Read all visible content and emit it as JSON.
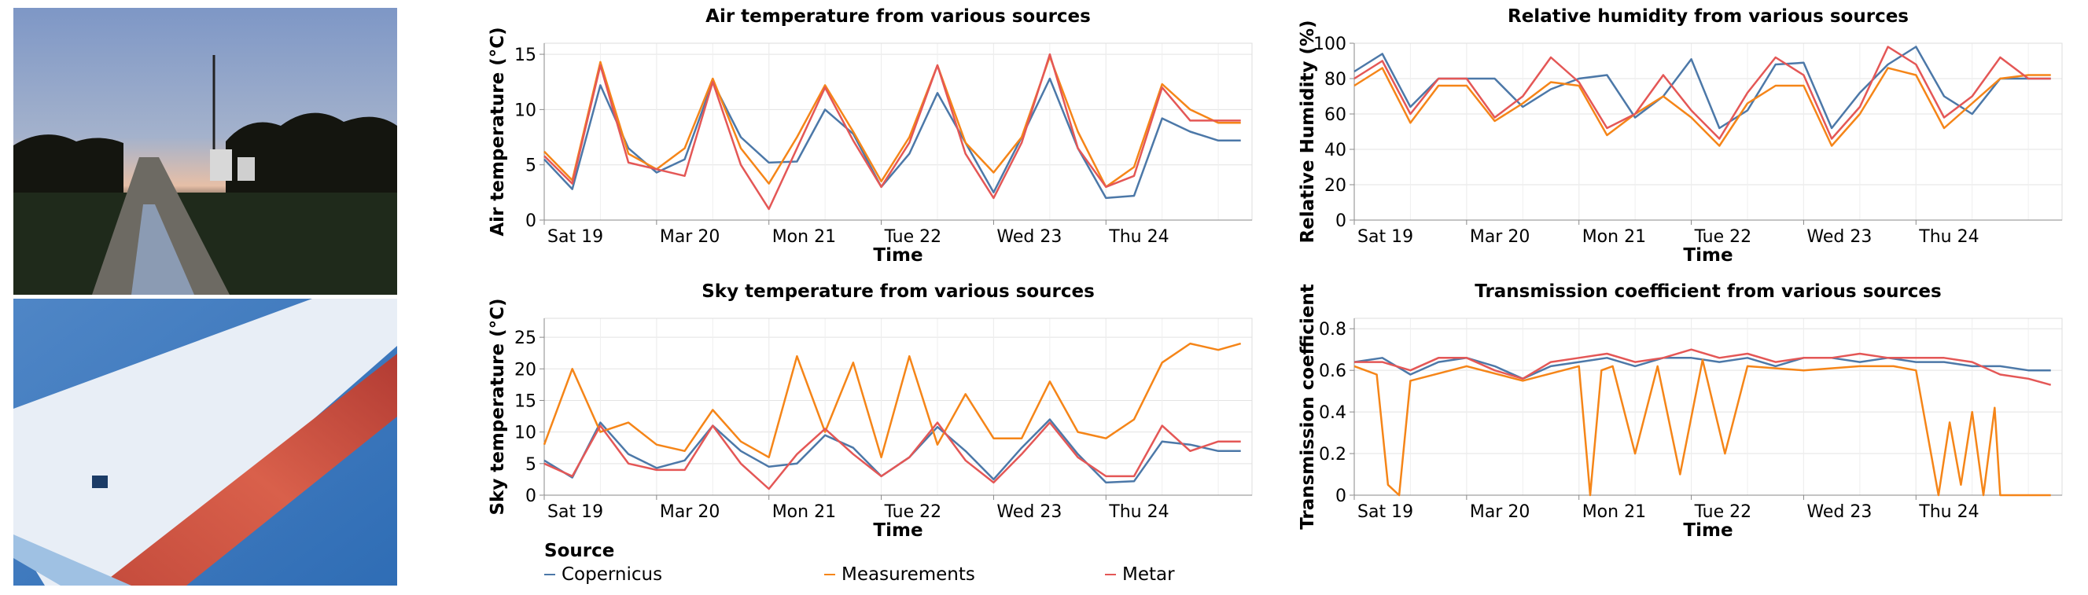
{
  "photos": {
    "top": {
      "title": "Test site photograph at dusk"
    },
    "bottom": {
      "title": "Thermal infrared image of the surface"
    }
  },
  "series_colors": {
    "Copernicus": "#4c78a8",
    "Measurements": "#f58518",
    "Metar": "#e45756"
  },
  "legend": {
    "title": "Source",
    "items": [
      {
        "name": "Copernicus",
        "color": "#4c78a8"
      },
      {
        "name": "Measurements",
        "color": "#f58518"
      },
      {
        "name": "Metar",
        "color": "#e45756"
      }
    ]
  },
  "chart_data": [
    {
      "id": "air",
      "type": "line",
      "title": "Air temperature from various sources",
      "xlabel": "Time",
      "ylabel": "Air temperature (°C)",
      "xlim": [
        0,
        6.3
      ],
      "ylim": [
        0,
        16
      ],
      "yticks": [
        0,
        5,
        10,
        15
      ],
      "xticks": [
        {
          "x": 0,
          "label": "Sat 19"
        },
        {
          "x": 1,
          "label": "Mar 20"
        },
        {
          "x": 2,
          "label": "Mon 21"
        },
        {
          "x": 3,
          "label": "Tue 22"
        },
        {
          "x": 4,
          "label": "Wed 23"
        },
        {
          "x": 5,
          "label": "Thu 24"
        }
      ],
      "series": [
        {
          "name": "Copernicus",
          "x": [
            0,
            0.25,
            0.5,
            0.75,
            1,
            1.25,
            1.5,
            1.75,
            2,
            2.25,
            2.5,
            2.75,
            3,
            3.25,
            3.5,
            3.75,
            4,
            4.25,
            4.5,
            4.75,
            5,
            5.25,
            5.5,
            5.75,
            6,
            6.2
          ],
          "values": [
            5.5,
            2.8,
            12.2,
            6.5,
            4.3,
            5.5,
            12.5,
            7.5,
            5.2,
            5.3,
            10.0,
            7.8,
            3.0,
            6.0,
            11.5,
            7.0,
            2.5,
            7.5,
            12.8,
            6.5,
            2.0,
            2.2,
            9.2,
            8.0,
            7.2,
            7.2
          ]
        },
        {
          "name": "Measurements",
          "x": [
            0,
            0.25,
            0.5,
            0.75,
            1,
            1.25,
            1.5,
            1.75,
            2,
            2.25,
            2.5,
            2.75,
            3,
            3.25,
            3.5,
            3.75,
            4,
            4.25,
            4.5,
            4.75,
            5,
            5.25,
            5.5,
            5.75,
            6,
            6.2
          ],
          "values": [
            6.2,
            3.6,
            14.3,
            6.0,
            4.6,
            6.5,
            12.8,
            6.5,
            3.3,
            7.5,
            12.2,
            8.0,
            3.5,
            7.5,
            14.0,
            7.0,
            4.3,
            7.5,
            14.8,
            8.0,
            3.0,
            4.8,
            12.3,
            10.0,
            8.8,
            8.8
          ]
        },
        {
          "name": "Metar",
          "x": [
            0,
            0.25,
            0.5,
            0.75,
            1,
            1.25,
            1.5,
            1.75,
            2,
            2.25,
            2.5,
            2.75,
            3,
            3.25,
            3.5,
            3.75,
            4,
            4.25,
            4.5,
            4.75,
            5,
            5.25,
            5.5,
            5.75,
            6,
            6.2
          ],
          "values": [
            5.8,
            3.3,
            14.0,
            5.2,
            4.6,
            4.0,
            12.5,
            5.0,
            1.0,
            6.5,
            12.0,
            7.2,
            3.0,
            7.0,
            14.0,
            6.0,
            2.0,
            7.0,
            15.0,
            6.5,
            3.0,
            4.0,
            12.0,
            9.0,
            9.0,
            9.0
          ]
        }
      ]
    },
    {
      "id": "humidity",
      "type": "line",
      "title": "Relative humidity from various sources",
      "xlabel": "Time",
      "ylabel": "Relative Humidity (%)",
      "xlim": [
        0,
        6.3
      ],
      "ylim": [
        0,
        100
      ],
      "yticks": [
        0,
        20,
        40,
        60,
        80,
        100
      ],
      "xticks": [
        {
          "x": 0,
          "label": "Sat 19"
        },
        {
          "x": 1,
          "label": "Mar 20"
        },
        {
          "x": 2,
          "label": "Mon 21"
        },
        {
          "x": 3,
          "label": "Tue 22"
        },
        {
          "x": 4,
          "label": "Wed 23"
        },
        {
          "x": 5,
          "label": "Thu 24"
        }
      ],
      "series": [
        {
          "name": "Copernicus",
          "x": [
            0,
            0.25,
            0.5,
            0.75,
            1,
            1.25,
            1.5,
            1.75,
            2,
            2.25,
            2.5,
            2.75,
            3,
            3.25,
            3.5,
            3.75,
            4,
            4.25,
            4.5,
            4.75,
            5,
            5.25,
            5.5,
            5.75,
            6,
            6.2
          ],
          "values": [
            84,
            94,
            64,
            80,
            80,
            80,
            64,
            74,
            80,
            82,
            58,
            70,
            91,
            52,
            62,
            88,
            89,
            52,
            72,
            88,
            98,
            70,
            60,
            80,
            80,
            80
          ]
        },
        {
          "name": "Measurements",
          "x": [
            0,
            0.25,
            0.5,
            0.75,
            1,
            1.25,
            1.5,
            1.75,
            2,
            2.25,
            2.5,
            2.75,
            3,
            3.25,
            3.5,
            3.75,
            4,
            4.25,
            4.5,
            4.75,
            5,
            5.25,
            5.5,
            5.75,
            6,
            6.2
          ],
          "values": [
            76,
            86,
            55,
            76,
            76,
            56,
            66,
            78,
            76,
            48,
            60,
            70,
            58,
            42,
            66,
            76,
            76,
            42,
            60,
            86,
            82,
            52,
            66,
            80,
            82,
            82
          ]
        },
        {
          "name": "Metar",
          "x": [
            0,
            0.25,
            0.5,
            0.75,
            1,
            1.25,
            1.5,
            1.75,
            2,
            2.25,
            2.5,
            2.75,
            3,
            3.25,
            3.5,
            3.75,
            4,
            4.25,
            4.5,
            4.75,
            5,
            5.25,
            5.5,
            5.75,
            6,
            6.2
          ],
          "values": [
            80,
            90,
            60,
            80,
            80,
            58,
            70,
            92,
            78,
            52,
            60,
            82,
            62,
            46,
            72,
            92,
            82,
            46,
            64,
            98,
            88,
            58,
            70,
            92,
            80,
            80
          ]
        }
      ]
    },
    {
      "id": "sky",
      "type": "line",
      "title": "Sky temperature from various sources",
      "xlabel": "Time",
      "ylabel": "Sky temperature (°C)",
      "xlim": [
        0,
        6.3
      ],
      "ylim": [
        0,
        28
      ],
      "yticks": [
        0,
        5,
        10,
        15,
        20,
        25
      ],
      "xticks": [
        {
          "x": 0,
          "label": "Sat 19"
        },
        {
          "x": 1,
          "label": "Mar 20"
        },
        {
          "x": 2,
          "label": "Mon 21"
        },
        {
          "x": 3,
          "label": "Tue 22"
        },
        {
          "x": 4,
          "label": "Wed 23"
        },
        {
          "x": 5,
          "label": "Thu 24"
        }
      ],
      "series": [
        {
          "name": "Copernicus",
          "x": [
            0,
            0.25,
            0.5,
            0.75,
            1,
            1.25,
            1.5,
            1.75,
            2,
            2.25,
            2.5,
            2.75,
            3,
            3.25,
            3.5,
            3.75,
            4,
            4.25,
            4.5,
            4.75,
            5,
            5.25,
            5.5,
            5.75,
            6,
            6.2
          ],
          "values": [
            5.5,
            2.8,
            11.5,
            6.5,
            4.3,
            5.5,
            11.0,
            7.0,
            4.5,
            5.0,
            9.5,
            7.5,
            3.0,
            6.0,
            10.8,
            7.0,
            2.5,
            7.5,
            12.0,
            6.5,
            2.0,
            2.2,
            8.5,
            8.0,
            7.0,
            7.0
          ]
        },
        {
          "name": "Measurements",
          "x": [
            0,
            0.25,
            0.5,
            0.75,
            1,
            1.25,
            1.5,
            1.75,
            2,
            2.25,
            2.5,
            2.75,
            3,
            3.25,
            3.5,
            3.75,
            4,
            4.25,
            4.5,
            4.75,
            5,
            5.25,
            5.5,
            5.75,
            6,
            6.2
          ],
          "values": [
            8.0,
            20.0,
            10.0,
            11.5,
            8.0,
            7.0,
            13.5,
            8.5,
            6.0,
            22.0,
            10.0,
            21.0,
            6.0,
            22.0,
            8.0,
            16.0,
            9.0,
            9.0,
            18.0,
            10.0,
            9.0,
            12.0,
            21.0,
            24.0,
            23.0,
            24.0
          ]
        },
        {
          "name": "Metar",
          "x": [
            0,
            0.25,
            0.5,
            0.75,
            1,
            1.25,
            1.5,
            1.75,
            2,
            2.25,
            2.5,
            2.75,
            3,
            3.25,
            3.5,
            3.75,
            4,
            4.25,
            4.5,
            4.75,
            5,
            5.25,
            5.5,
            5.75,
            6,
            6.2
          ],
          "values": [
            5.0,
            3.0,
            11.0,
            5.0,
            4.0,
            4.0,
            11.0,
            5.0,
            1.0,
            6.5,
            10.5,
            6.5,
            3.0,
            6.0,
            11.5,
            5.5,
            2.0,
            6.5,
            11.5,
            6.0,
            3.0,
            3.0,
            11.0,
            7.0,
            8.5,
            8.5
          ]
        }
      ]
    },
    {
      "id": "transmission",
      "type": "line",
      "title": "Transmission coefficient from various sources",
      "xlabel": "Time",
      "ylabel": "Transmission coefficient",
      "xlim": [
        0,
        6.3
      ],
      "ylim": [
        0,
        0.85
      ],
      "yticks": [
        0.0,
        0.2,
        0.4,
        0.6,
        0.8
      ],
      "xticks": [
        {
          "x": 0,
          "label": "Sat 19"
        },
        {
          "x": 1,
          "label": "Mar 20"
        },
        {
          "x": 2,
          "label": "Mon 21"
        },
        {
          "x": 3,
          "label": "Tue 22"
        },
        {
          "x": 4,
          "label": "Wed 23"
        },
        {
          "x": 5,
          "label": "Thu 24"
        }
      ],
      "series": [
        {
          "name": "Copernicus",
          "x": [
            0,
            0.25,
            0.5,
            0.75,
            1,
            1.25,
            1.5,
            1.75,
            2,
            2.25,
            2.5,
            2.75,
            3,
            3.25,
            3.5,
            3.75,
            4,
            4.25,
            4.5,
            4.75,
            5,
            5.25,
            5.5,
            5.75,
            6,
            6.2
          ],
          "values": [
            0.64,
            0.66,
            0.58,
            0.64,
            0.66,
            0.62,
            0.56,
            0.62,
            0.64,
            0.66,
            0.62,
            0.66,
            0.66,
            0.64,
            0.66,
            0.62,
            0.66,
            0.66,
            0.64,
            0.66,
            0.64,
            0.64,
            0.62,
            0.62,
            0.6,
            0.6
          ]
        },
        {
          "name": "Measurements",
          "x": [
            0,
            0.1,
            0.2,
            0.3,
            0.4,
            0.5,
            1,
            1.5,
            2,
            2.1,
            2.2,
            2.3,
            2.5,
            2.7,
            2.9,
            3.1,
            3.3,
            3.5,
            4,
            4.5,
            4.8,
            5,
            5.2,
            5.3,
            5.4,
            5.5,
            5.6,
            5.7,
            5.75,
            6,
            6.2
          ],
          "values": [
            0.62,
            0.6,
            0.58,
            0.05,
            0.0,
            0.55,
            0.62,
            0.55,
            0.62,
            0.0,
            0.6,
            0.62,
            0.2,
            0.62,
            0.1,
            0.65,
            0.2,
            0.62,
            0.6,
            0.62,
            0.62,
            0.6,
            0.0,
            0.35,
            0.05,
            0.4,
            0.0,
            0.42,
            0.0,
            0.0,
            0.0
          ]
        },
        {
          "name": "Metar",
          "x": [
            0,
            0.25,
            0.5,
            0.75,
            1,
            1.25,
            1.5,
            1.75,
            2,
            2.25,
            2.5,
            2.75,
            3,
            3.25,
            3.5,
            3.75,
            4,
            4.25,
            4.5,
            4.75,
            5,
            5.25,
            5.5,
            5.75,
            6,
            6.2
          ],
          "values": [
            0.64,
            0.64,
            0.6,
            0.66,
            0.66,
            0.6,
            0.56,
            0.64,
            0.66,
            0.68,
            0.64,
            0.66,
            0.7,
            0.66,
            0.68,
            0.64,
            0.66,
            0.66,
            0.68,
            0.66,
            0.66,
            0.66,
            0.64,
            0.58,
            0.56,
            0.53
          ]
        }
      ]
    }
  ]
}
